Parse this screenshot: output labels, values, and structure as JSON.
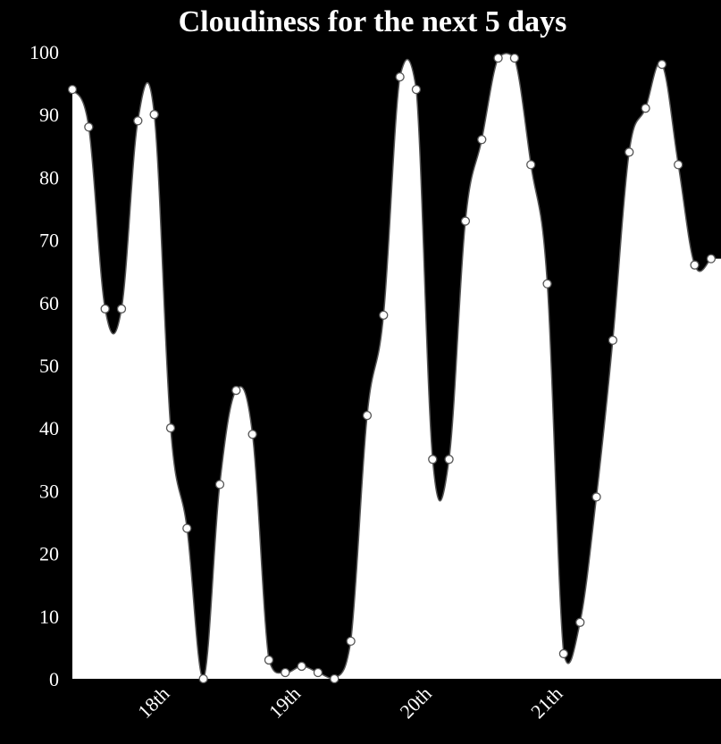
{
  "chart_data": {
    "type": "area",
    "title": "Cloudiness for the next 5 days",
    "xlabel": "",
    "ylabel": "",
    "ylim": [
      0,
      100
    ],
    "yticks": [
      0,
      10,
      20,
      30,
      40,
      50,
      60,
      70,
      80,
      90,
      100
    ],
    "x_labels": [
      {
        "label": "18th",
        "index": 6
      },
      {
        "label": "19th",
        "index": 14
      },
      {
        "label": "20th",
        "index": 22
      },
      {
        "label": "21th",
        "index": 30
      }
    ],
    "grid": false,
    "legend": "none",
    "colors": {
      "background": "#000000",
      "fill": "#ffffff",
      "line": "#555555",
      "text": "#ffffff"
    },
    "values": [
      94,
      88,
      59,
      59,
      89,
      90,
      40,
      24,
      0,
      31,
      46,
      39,
      3,
      1,
      2,
      1,
      0,
      6,
      42,
      58,
      96,
      94,
      35,
      35,
      73,
      86,
      99,
      99,
      82,
      63,
      4,
      9,
      29,
      54,
      84,
      91,
      98,
      82,
      66,
      67
    ]
  }
}
